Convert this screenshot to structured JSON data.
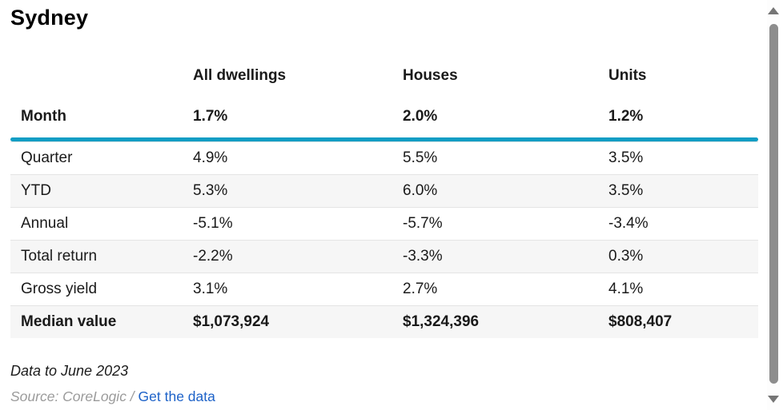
{
  "title": "Sydney",
  "table": {
    "columns": [
      "All dwellings",
      "Houses",
      "Units"
    ],
    "header_row": {
      "label": "Month",
      "values": [
        "1.7%",
        "2.0%",
        "1.2%"
      ]
    },
    "rows": [
      {
        "label": "Quarter",
        "values": [
          "4.9%",
          "5.5%",
          "3.5%"
        ]
      },
      {
        "label": "YTD",
        "values": [
          "5.3%",
          "6.0%",
          "3.5%"
        ]
      },
      {
        "label": "Annual",
        "values": [
          "-5.1%",
          "-5.7%",
          "-3.4%"
        ]
      },
      {
        "label": "Total return",
        "values": [
          "-2.2%",
          "-3.3%",
          "0.3%"
        ]
      },
      {
        "label": "Gross yield",
        "values": [
          "3.1%",
          "2.7%",
          "4.1%"
        ]
      },
      {
        "label": "Median value",
        "values": [
          "$1,073,924",
          "$1,324,396",
          "$808,407"
        ]
      }
    ]
  },
  "footer": {
    "data_note": "Data to June 2023",
    "source_prefix": "Source: CoreLogic / ",
    "link_label": "Get the data"
  },
  "colors": {
    "accent": "#0f9dc4",
    "row_alt": "#f6f6f6",
    "link": "#1d62c8",
    "rule_text": "#1a1a1a"
  },
  "chart_data": {
    "type": "table",
    "title": "Sydney",
    "columns": [
      "",
      "All dwellings",
      "Houses",
      "Units"
    ],
    "rows": [
      [
        "Month",
        "1.7%",
        "2.0%",
        "1.2%"
      ],
      [
        "Quarter",
        "4.9%",
        "5.5%",
        "3.5%"
      ],
      [
        "YTD",
        "5.3%",
        "6.0%",
        "3.5%"
      ],
      [
        "Annual",
        "-5.1%",
        "-5.7%",
        "-3.4%"
      ],
      [
        "Total return",
        "-2.2%",
        "-3.3%",
        "0.3%"
      ],
      [
        "Gross yield",
        "3.1%",
        "2.7%",
        "4.1%"
      ],
      [
        "Median value",
        "$1,073,924",
        "$1,324,396",
        "$808,407"
      ]
    ],
    "notes": [
      "Data to June 2023",
      "Source: CoreLogic / Get the data"
    ]
  }
}
